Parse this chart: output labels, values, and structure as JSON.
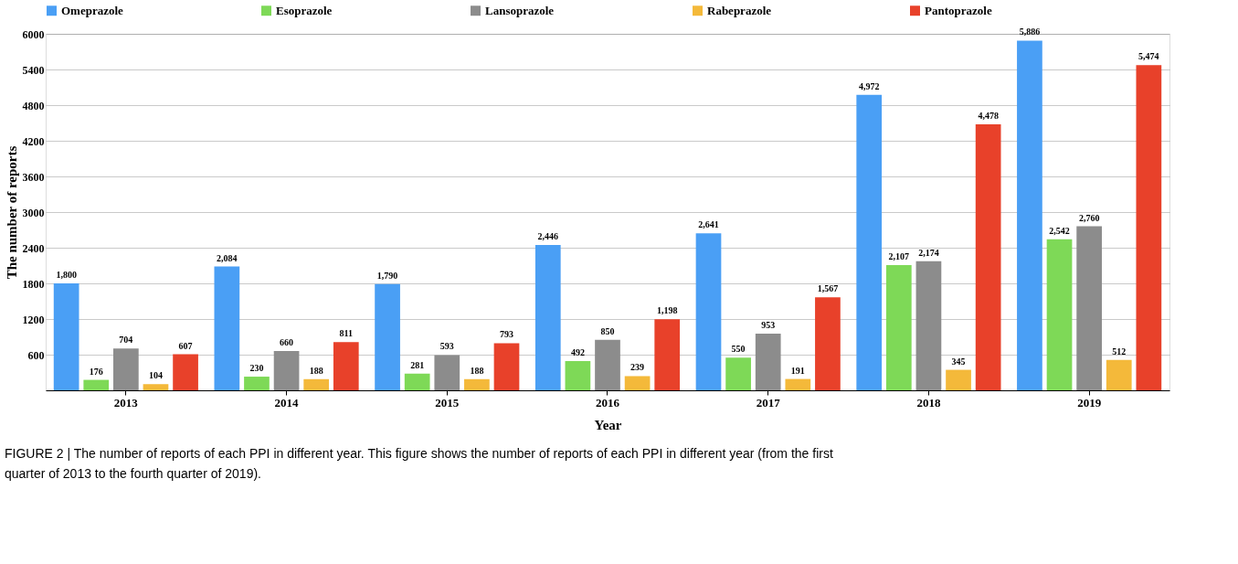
{
  "chart_data": {
    "type": "bar",
    "xlabel": "Year",
    "ylabel": "The number of reports",
    "categories": [
      "2013",
      "2014",
      "2015",
      "2016",
      "2017",
      "2018",
      "2019"
    ],
    "series": [
      {
        "name": "Omeprazole",
        "color": "#4a9ff5",
        "values": [
          1800,
          2084,
          1790,
          2446,
          2641,
          4972,
          5886
        ],
        "value_labels": [
          "1,800",
          "2,084",
          "1,790",
          "2,446",
          "2,641",
          "4,972",
          "5,886"
        ]
      },
      {
        "name": "Esoprazole",
        "color": "#7ed957",
        "values": [
          176,
          230,
          281,
          492,
          550,
          2107,
          2542
        ],
        "value_labels": [
          "176",
          "230",
          "281",
          "492",
          "550",
          "2,107",
          "2,542"
        ]
      },
      {
        "name": "Lansoprazole",
        "color": "#8c8c8c",
        "values": [
          704,
          660,
          593,
          850,
          953,
          2174,
          2760
        ],
        "value_labels": [
          "704",
          "660",
          "593",
          "850",
          "953",
          "2,174",
          "2,760"
        ]
      },
      {
        "name": "Rabeprazole",
        "color": "#f4b93a",
        "values": [
          104,
          188,
          188,
          239,
          191,
          345,
          512
        ],
        "value_labels": [
          "104",
          "188",
          "188",
          "239",
          "191",
          "345",
          "512"
        ]
      },
      {
        "name": "Pantoprazole",
        "color": "#e8412a",
        "values": [
          607,
          811,
          793,
          1198,
          1567,
          4478,
          5474
        ],
        "value_labels": [
          "607",
          "811",
          "793",
          "1,198",
          "1,567",
          "4,478",
          "5,474"
        ]
      }
    ],
    "ylim": [
      0,
      6000
    ],
    "yticks": [
      600,
      1200,
      1800,
      2400,
      3000,
      3600,
      4200,
      4800,
      5400,
      6000
    ],
    "grid": "y",
    "legend": "top",
    "annotations": [
      "FIGURE 2 | The number of reports of each PPI in different year. This figure shows the number of reports of each PPI in different year (from the first quarter of 2013 to the fourth quarter of 2019)."
    ]
  }
}
